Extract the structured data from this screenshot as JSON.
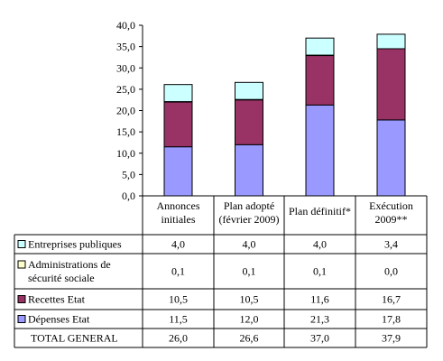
{
  "chart_data": {
    "type": "bar",
    "stacked": true,
    "categories": [
      [
        "Annonces",
        "initiales"
      ],
      [
        "Plan adopté",
        "(février 2009)"
      ],
      [
        "Plan définitif*"
      ],
      [
        "Exécution",
        "2009**"
      ]
    ],
    "ylim": [
      0,
      40
    ],
    "yticks": [
      "0,0",
      "5,0",
      "10,0",
      "15,0",
      "20,0",
      "25,0",
      "30,0",
      "35,0",
      "40,0"
    ],
    "grid": false,
    "legend": "table below chart",
    "series": [
      {
        "name": [
          "Dépenses Etat"
        ],
        "color": "#9999ff",
        "values": [
          11.5,
          12.0,
          21.3,
          17.8
        ],
        "labels": [
          "11,5",
          "12,0",
          "21,3",
          "17,8"
        ]
      },
      {
        "name": [
          "Recettes Etat"
        ],
        "color": "#993366",
        "values": [
          10.5,
          10.5,
          11.6,
          16.7
        ],
        "labels": [
          "10,5",
          "10,5",
          "11,6",
          "16,7"
        ]
      },
      {
        "name": [
          "Administrations de",
          "sécurité sociale"
        ],
        "color": "#ffffcc",
        "values": [
          0.1,
          0.1,
          0.1,
          0.0
        ],
        "labels": [
          "0,1",
          "0,1",
          "0,1",
          "0,0"
        ]
      },
      {
        "name": [
          "Entreprises publiques"
        ],
        "color": "#ccffff",
        "values": [
          4.0,
          4.0,
          4.0,
          3.4
        ],
        "labels": [
          "4,0",
          "4,0",
          "4,0",
          "3,4"
        ]
      }
    ],
    "total": {
      "name": "TOTAL GENERAL",
      "labels": [
        "26,0",
        "26,6",
        "37,0",
        "37,9"
      ]
    }
  }
}
